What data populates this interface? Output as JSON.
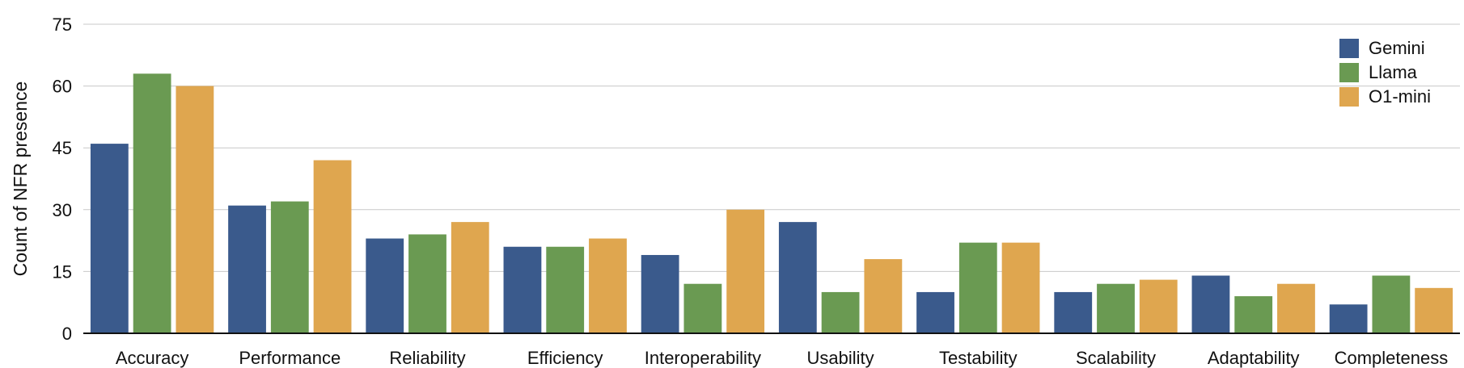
{
  "chart_data": {
    "type": "bar",
    "title": "",
    "xlabel": "",
    "ylabel": "Count of NFR presence",
    "ylim": [
      0,
      75
    ],
    "yticks": [
      0,
      15,
      30,
      45,
      60,
      75
    ],
    "grid": true,
    "legend_position": "top-right",
    "categories": [
      "Accuracy",
      "Performance",
      "Reliability",
      "Efficiency",
      "Interoperability",
      "Usability",
      "Testability",
      "Scalability",
      "Adaptability",
      "Completeness"
    ],
    "series": [
      {
        "name": "Gemini",
        "color": "#3a5a8c",
        "values": [
          46,
          31,
          23,
          21,
          19,
          27,
          10,
          10,
          14,
          7
        ]
      },
      {
        "name": "Llama",
        "color": "#6a9a52",
        "values": [
          63,
          32,
          24,
          21,
          12,
          10,
          22,
          12,
          9,
          14
        ]
      },
      {
        "name": "O1-mini",
        "color": "#dfa64f",
        "values": [
          60,
          42,
          27,
          23,
          30,
          18,
          22,
          13,
          12,
          11
        ]
      }
    ]
  }
}
